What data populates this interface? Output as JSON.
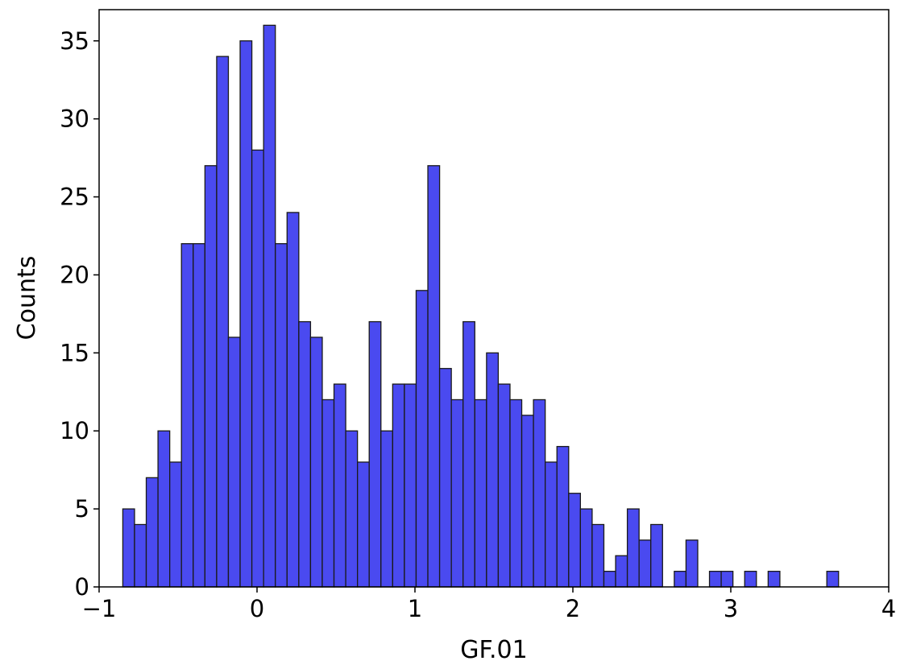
{
  "chart_data": {
    "type": "bar",
    "subtype": "histogram",
    "title": "",
    "xlabel": "GF.01",
    "ylabel": "Counts",
    "xlim": [
      -1,
      4
    ],
    "ylim": [
      0,
      37
    ],
    "xticks": [
      -1,
      0,
      1,
      2,
      3,
      4
    ],
    "xtick_labels": [
      "−1",
      "0",
      "1",
      "2",
      "3",
      "4"
    ],
    "yticks": [
      0,
      5,
      10,
      15,
      20,
      25,
      30,
      35
    ],
    "ytick_labels": [
      "0",
      "5",
      "10",
      "15",
      "20",
      "25",
      "30",
      "35"
    ],
    "bin_start": -0.85,
    "bin_width": 0.0743,
    "values": [
      5,
      4,
      7,
      10,
      8,
      22,
      22,
      27,
      34,
      16,
      35,
      28,
      36,
      22,
      24,
      17,
      16,
      12,
      13,
      10,
      8,
      17,
      10,
      13,
      13,
      19,
      27,
      14,
      12,
      17,
      12,
      15,
      13,
      12,
      11,
      12,
      8,
      9,
      6,
      5,
      4,
      1,
      2,
      5,
      3,
      4,
      0,
      1,
      3,
      0,
      1,
      1,
      0,
      1,
      0,
      1,
      0,
      0,
      0,
      0,
      1
    ],
    "bar_color": "#4a4af0",
    "edge_color": "#1a1a1a",
    "grid": false,
    "legend": "none"
  }
}
